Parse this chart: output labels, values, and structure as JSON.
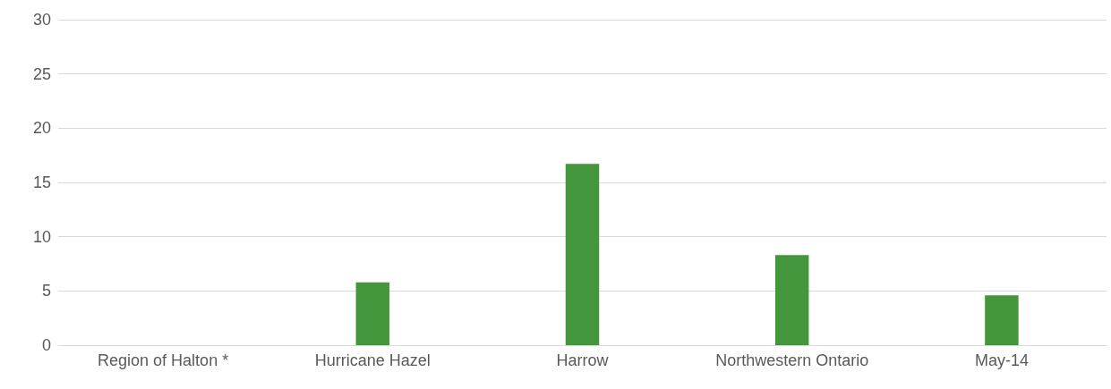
{
  "chart_data": {
    "type": "bar",
    "categories": [
      "Region of Halton *",
      "Hurricane Hazel",
      "Harrow",
      "Northwestern Ontario",
      "May-14"
    ],
    "values": [
      0,
      5.8,
      16.7,
      8.3,
      4.6
    ],
    "color": "#43963b",
    "ylim": [
      0,
      30
    ],
    "yticks": [
      0,
      5,
      10,
      15,
      20,
      25,
      30
    ],
    "grid": "y"
  }
}
